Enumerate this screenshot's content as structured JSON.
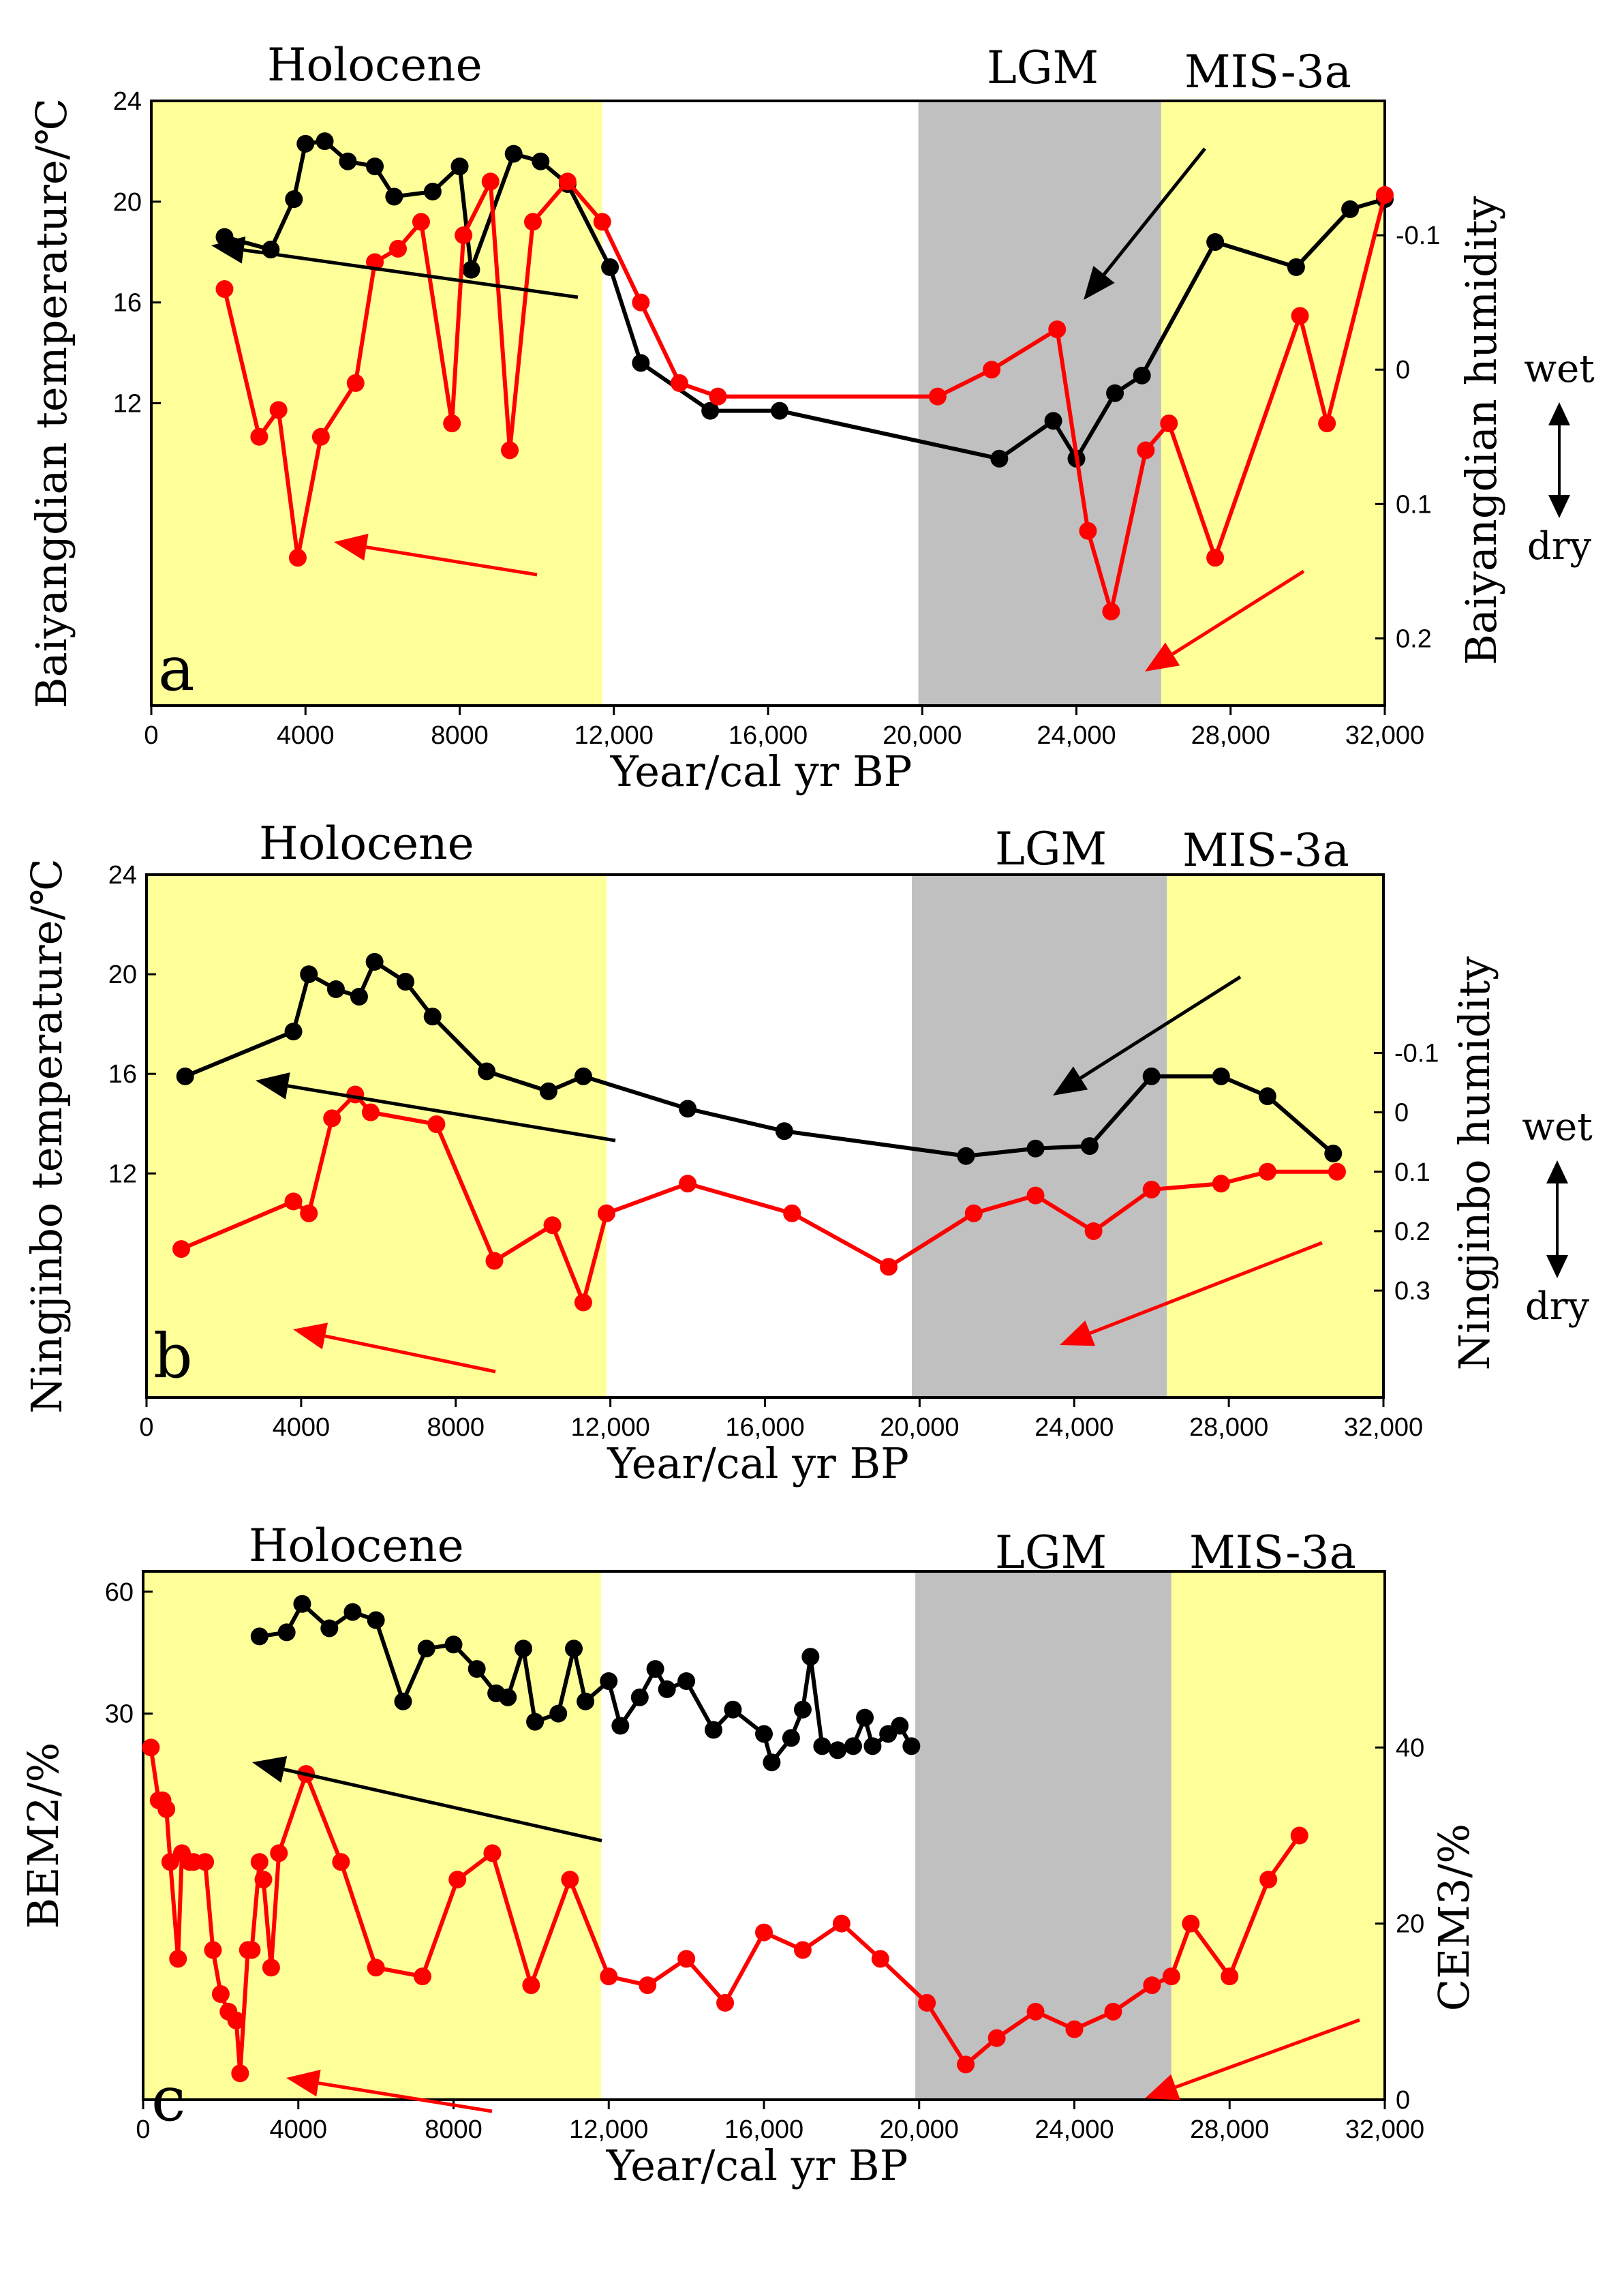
{
  "figure": {
    "x_axis_label": "Year/cal yr BP",
    "x_ticks": [
      "0",
      "4000",
      "8000",
      "12,000",
      "16,000",
      "20,000",
      "24,000",
      "28,000",
      "32,000"
    ],
    "x_tick_values": [
      0,
      4000,
      8000,
      12000,
      16000,
      20000,
      24000,
      28000,
      32000
    ],
    "period_labels": [
      "Holocene",
      "LGM",
      "MIS-3a"
    ],
    "humidity_labels": {
      "wet": "wet",
      "dry": "dry"
    },
    "colors": {
      "holocene_band": "#ffff99",
      "mis3a_band": "#ffff99",
      "lgm_band": "#c0c0c0",
      "temperature_series": "#000000",
      "humidity_series": "#ff0000"
    }
  },
  "chart_data": [
    {
      "type": "line",
      "panel": "a",
      "xlabel": "Year/cal yr BP",
      "xlim": [
        0,
        32000
      ],
      "ylabel": "Baiyangdian temperature/℃",
      "ylim": [
        0,
        24
      ],
      "y_ticks": [
        "12",
        "16",
        "20",
        "24"
      ],
      "y_tick_values": [
        12,
        16,
        20,
        24
      ],
      "y2label": "Baiyangdian humidity",
      "y2lim": [
        0.25,
        -0.2
      ],
      "y2_ticks": [
        "-0.1",
        "0",
        "0.1",
        "0.2"
      ],
      "y2_tick_values": [
        -0.1,
        0,
        0.1,
        0.2
      ],
      "bands": [
        {
          "label": "Holocene",
          "from": 0,
          "to": 11700
        },
        {
          "label": "LGM",
          "from": 19900,
          "to": 26200
        },
        {
          "label": "MIS-3a",
          "from": 26200,
          "to": 32000
        }
      ],
      "series": [
        {
          "name": "Baiyangdian temperature",
          "axis": "left",
          "x": [
            1900,
            3100,
            3700,
            4000,
            4500,
            5100,
            5800,
            6300,
            7300,
            8000,
            8300,
            9400,
            10100,
            10800,
            11900,
            12700,
            14500,
            16300,
            22000,
            23400,
            24000,
            25000,
            25700,
            27600,
            29700,
            31100,
            32000
          ],
          "values": [
            18.6,
            18.1,
            20.1,
            22.3,
            22.4,
            21.6,
            21.4,
            20.2,
            20.4,
            21.4,
            17.3,
            21.9,
            21.6,
            20.7,
            17.4,
            13.6,
            11.7,
            11.7,
            9.8,
            11.3,
            9.8,
            12.4,
            13.1,
            18.4,
            17.4,
            19.7,
            20.1
          ]
        },
        {
          "name": "Baiyangdian humidity",
          "axis": "right",
          "x": [
            1900,
            2800,
            3300,
            3800,
            4400,
            5300,
            5800,
            6400,
            7000,
            7800,
            8100,
            8800,
            9300,
            9900,
            10800,
            11700,
            12700,
            13700,
            14700,
            20400,
            21800,
            23500,
            24300,
            24900,
            25800,
            26400,
            27600,
            29800,
            30500,
            32000
          ],
          "values": [
            -0.06,
            0.05,
            0.03,
            0.14,
            0.05,
            0.01,
            -0.08,
            -0.09,
            -0.11,
            0.04,
            -0.1,
            -0.14,
            0.06,
            -0.11,
            -0.14,
            -0.11,
            -0.05,
            0.01,
            0.02,
            0.02,
            0.0,
            -0.03,
            0.12,
            0.18,
            0.06,
            0.04,
            0.14,
            -0.04,
            0.04,
            -0.13
          ]
        }
      ],
      "arrows": [
        "black",
        "red",
        "black",
        "red"
      ],
      "panel_letter": "a"
    },
    {
      "type": "line",
      "panel": "b",
      "xlabel": "Year/cal yr BP",
      "xlim": [
        0,
        32000
      ],
      "ylabel": "Ningjinbo temperature/℃",
      "ylim": [
        3,
        24
      ],
      "y_ticks": [
        "12",
        "16",
        "20",
        "24"
      ],
      "y_tick_values": [
        12,
        16,
        20,
        24
      ],
      "y2label": "Ningjinbo humidity",
      "y2lim": [
        0.48,
        -0.4
      ],
      "y2_ticks": [
        "-0.1",
        "0",
        "0.1",
        "0.2",
        "0.3"
      ],
      "y2_tick_values": [
        -0.1,
        0,
        0.1,
        0.2,
        0.3
      ],
      "bands": [
        {
          "label": "Holocene",
          "from": 0,
          "to": 11900
        },
        {
          "label": "LGM",
          "from": 19800,
          "to": 26400
        },
        {
          "label": "MIS-3a",
          "from": 26400,
          "to": 32000
        }
      ],
      "series": [
        {
          "name": "Ningjinbo temperature",
          "axis": "left",
          "x": [
            1000,
            3800,
            4200,
            4900,
            5500,
            5900,
            6700,
            7400,
            8800,
            10400,
            11300,
            14000,
            16500,
            21200,
            23000,
            24400,
            26000,
            27800,
            29000,
            30700
          ],
          "values": [
            15.9,
            17.7,
            20.0,
            19.4,
            19.1,
            20.5,
            19.7,
            18.3,
            16.1,
            15.3,
            15.9,
            14.6,
            13.7,
            12.7,
            13.0,
            13.1,
            15.9,
            15.9,
            15.1,
            12.8
          ]
        },
        {
          "name": "Ningjinbo humidity",
          "axis": "right",
          "x": [
            900,
            3800,
            4200,
            4800,
            5400,
            5800,
            7500,
            9000,
            10500,
            11300,
            11900,
            14000,
            16700,
            19200,
            21400,
            23000,
            24500,
            26000,
            27800,
            29000,
            30800
          ],
          "values": [
            0.23,
            0.15,
            0.17,
            0.01,
            -0.03,
            0.0,
            0.02,
            0.25,
            0.19,
            0.32,
            0.17,
            0.12,
            0.17,
            0.26,
            0.17,
            0.14,
            0.2,
            0.13,
            0.12,
            0.1,
            0.1
          ]
        }
      ],
      "arrows": [
        "black",
        "red",
        "black",
        "red"
      ],
      "panel_letter": "b"
    },
    {
      "type": "line",
      "panel": "c",
      "xlabel": "Year/cal yr BP",
      "xlim": [
        0,
        32000
      ],
      "ylabel": "BEM2/%",
      "ylim": [
        -65,
        65
      ],
      "y_ticks": [
        "30",
        "60"
      ],
      "y_tick_values": [
        30,
        60
      ],
      "y2label": "CEM3/%",
      "y2lim": [
        0,
        60
      ],
      "y2_ticks": [
        "0",
        "20",
        "40"
      ],
      "y2_tick_values": [
        0,
        20,
        40
      ],
      "bands": [
        {
          "label": "Holocene",
          "from": 0,
          "to": 11800
        },
        {
          "label": "LGM",
          "from": 19900,
          "to": 26500
        },
        {
          "label": "MIS-3a",
          "from": 26500,
          "to": 32000
        }
      ],
      "series": [
        {
          "name": "BEM2",
          "axis": "left",
          "x": [
            3000,
            3700,
            4100,
            4800,
            5400,
            6000,
            6700,
            7300,
            8000,
            8600,
            9100,
            9400,
            9800,
            10100,
            10700,
            11100,
            11400,
            12000,
            12300,
            12800,
            13200,
            13500,
            14000,
            14700,
            15200,
            16000,
            16200,
            16700,
            17000,
            17200,
            17500,
            17900,
            18300,
            18600,
            18800,
            19200,
            19500,
            19800
          ],
          "values": [
            49,
            50,
            57,
            51,
            55,
            53,
            33,
            46,
            47,
            41,
            35,
            34,
            46,
            28,
            30,
            46,
            33,
            38,
            27,
            34,
            41,
            36,
            38,
            26,
            31,
            25,
            18,
            24,
            31,
            44,
            22,
            21,
            22,
            29,
            22,
            25,
            27,
            22
          ]
        },
        {
          "name": "CEM3",
          "axis": "right",
          "x": [
            200,
            400,
            500,
            600,
            700,
            900,
            1000,
            1200,
            1300,
            1600,
            1800,
            2000,
            2200,
            2400,
            2500,
            2700,
            2800,
            3000,
            3100,
            3300,
            3500,
            4200,
            5100,
            6000,
            7200,
            8100,
            9000,
            10000,
            11000,
            12000,
            13000,
            14000,
            15000,
            16000,
            17000,
            18000,
            19000,
            20200,
            21200,
            22000,
            23000,
            24000,
            25000,
            26000,
            26500,
            27000,
            28000,
            29000,
            29800
          ],
          "values": [
            40,
            34,
            34,
            33,
            27,
            16,
            28,
            27,
            27,
            27,
            17,
            12,
            10,
            9,
            3,
            17,
            17,
            27,
            25,
            15,
            28,
            37,
            27,
            15,
            14,
            25,
            28,
            13,
            25,
            14,
            13,
            16,
            11,
            19,
            17,
            20,
            16,
            11,
            4,
            7,
            10,
            8,
            10,
            13,
            14,
            20,
            14,
            25,
            30
          ]
        }
      ],
      "arrows": [
        "black",
        "red",
        "red"
      ],
      "panel_letter": "c"
    }
  ]
}
